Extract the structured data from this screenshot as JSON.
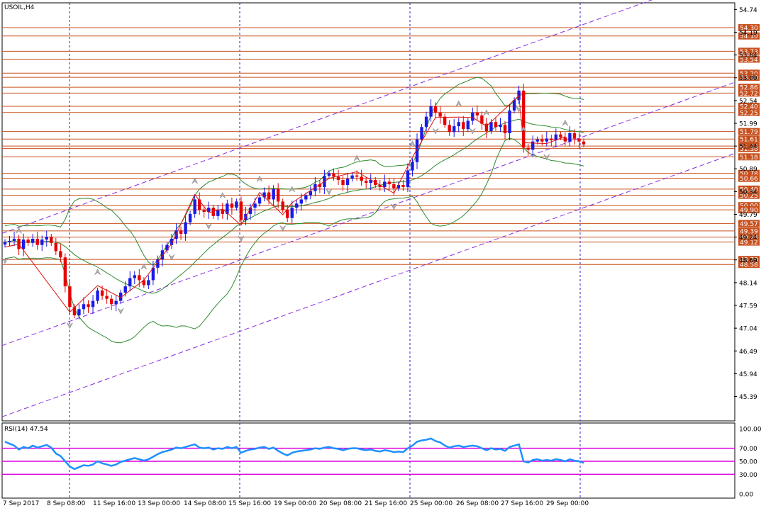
{
  "chart_data": [
    {
      "type": "candlestick",
      "title": "USOIL,H4",
      "price_range": [
        44.8,
        54.9
      ],
      "price_ticks": [
        "54.74",
        "54.19",
        "53.64",
        "53.09",
        "52.54",
        "51.99",
        "51.44",
        "50.89",
        "50.34",
        "49.79",
        "49.24",
        "48.69",
        "48.14",
        "47.59",
        "47.04",
        "46.49",
        "45.94",
        "45.39"
      ],
      "level_lines": [
        {
          "value": 54.3,
          "label": "54.30"
        },
        {
          "value": 54.1,
          "label": "54.10"
        },
        {
          "value": 53.73,
          "label": "53.73"
        },
        {
          "value": 53.54,
          "label": "53.54"
        },
        {
          "value": 53.2,
          "label": "53.20"
        },
        {
          "value": 53.1,
          "label": "53.10"
        },
        {
          "value": 52.86,
          "label": "52.86"
        },
        {
          "value": 52.72,
          "label": "52.72"
        },
        {
          "value": 52.4,
          "label": "52.40"
        },
        {
          "value": 52.25,
          "label": "52.25"
        },
        {
          "value": 51.79,
          "label": "51.79"
        },
        {
          "value": 51.61,
          "label": "51.61"
        },
        {
          "value": 51.44,
          "label": "51.44"
        },
        {
          "value": 51.38,
          "label": "51.38"
        },
        {
          "value": 51.18,
          "label": "51.18"
        },
        {
          "value": 50.78,
          "label": "50.78"
        },
        {
          "value": 50.66,
          "label": "50.66"
        },
        {
          "value": 50.4,
          "label": "50.40"
        },
        {
          "value": 50.25,
          "label": "50.25"
        },
        {
          "value": 50.0,
          "label": "50.00"
        },
        {
          "value": 49.9,
          "label": "49.90"
        },
        {
          "value": 49.57,
          "label": "49.57"
        },
        {
          "value": 49.39,
          "label": "49.39"
        },
        {
          "value": 49.24,
          "label": "49.24"
        },
        {
          "value": 49.12,
          "label": "49.12"
        },
        {
          "value": 48.7,
          "label": "48.70"
        },
        {
          "value": 48.58,
          "label": "48.58"
        }
      ],
      "closes": [
        49.12,
        49.15,
        49.2,
        48.95,
        49.18,
        49.1,
        49.2,
        49.05,
        49.18,
        49.25,
        49.1,
        48.9,
        48.75,
        48.05,
        47.55,
        47.35,
        47.5,
        47.62,
        47.55,
        47.7,
        47.95,
        47.82,
        47.75,
        47.62,
        47.7,
        47.9,
        48.05,
        48.25,
        48.32,
        48.2,
        48.08,
        48.2,
        48.5,
        48.7,
        48.92,
        49.05,
        49.2,
        49.4,
        49.32,
        49.6,
        49.8,
        50.15,
        49.9,
        49.85,
        49.95,
        49.75,
        49.9,
        49.8,
        50.05,
        49.95,
        50.1,
        49.65,
        49.8,
        49.95,
        50.05,
        50.2,
        50.32,
        50.15,
        50.4,
        50.1,
        49.9,
        49.7,
        49.95,
        50.05,
        50.15,
        50.25,
        50.35,
        50.52,
        50.45,
        50.72,
        50.78,
        50.7,
        50.62,
        50.5,
        50.65,
        50.73,
        50.7,
        50.6,
        50.55,
        50.62,
        50.5,
        50.45,
        50.58,
        50.52,
        50.42,
        50.5,
        50.45,
        50.85,
        51.05,
        51.6,
        51.9,
        52.15,
        52.4,
        52.25,
        52.15,
        51.95,
        51.78,
        51.92,
        52.02,
        51.85,
        52.05,
        52.25,
        52.18,
        51.98,
        51.8,
        52.02,
        51.9,
        51.95,
        51.75,
        52.3,
        52.55,
        52.78,
        51.4,
        51.35,
        51.55,
        51.6,
        51.55,
        51.62,
        51.58,
        51.72,
        51.65,
        51.55,
        51.75,
        51.62,
        51.55,
        51.48
      ],
      "rsi": {
        "label": "RSI(14) 47.54",
        "range": [
          0,
          100
        ],
        "ticks": [
          "100.00",
          "70.00",
          "50.00",
          "30.00",
          "0.00"
        ],
        "levels": [
          70,
          50,
          30
        ],
        "values": [
          80,
          77,
          74,
          68,
          72,
          70,
          74,
          71,
          73,
          75,
          71,
          62,
          58,
          50,
          42,
          38,
          41,
          44,
          43,
          45,
          50,
          47,
          45,
          43,
          45,
          49,
          51,
          53,
          55,
          53,
          51,
          53,
          57,
          61,
          64,
          66,
          68,
          71,
          70,
          72,
          74,
          76,
          71,
          70,
          71,
          68,
          70,
          69,
          72,
          70,
          72,
          63,
          66,
          68,
          69,
          71,
          72,
          69,
          71,
          66,
          62,
          59,
          63,
          65,
          66,
          67,
          68,
          70,
          69,
          71,
          72,
          70,
          69,
          67,
          69,
          70,
          70,
          68,
          67,
          68,
          66,
          65,
          67,
          66,
          64,
          65,
          64,
          70,
          74,
          80,
          82,
          83,
          85,
          81,
          79,
          74,
          71,
          73,
          74,
          72,
          73,
          74,
          73,
          70,
          67,
          70,
          68,
          69,
          66,
          72,
          74,
          76,
          50,
          48,
          52,
          53,
          51,
          52,
          51,
          53,
          52,
          50,
          53,
          51,
          50,
          47.54
        ]
      },
      "time_labels": [
        "7 Sep 2017",
        "8 Sep 08:00",
        "11 Sep 16:00",
        "13 Sep 00:00",
        "14 Sep 08:00",
        "15 Sep 16:00",
        "19 Sep 00:00",
        "20 Sep 08:00",
        "21 Sep 16:00",
        "25 Sep 00:00",
        "26 Sep 08:00",
        "27 Sep 16:00",
        "29 Sep 00:00"
      ],
      "colors": {
        "up": "#1a1ae6",
        "down": "#e60000",
        "bands": "#2e8b2e",
        "zigzag": "#dd1111",
        "channel": "#8a2be2",
        "levels": "#c8501e",
        "rsi": "#1e90ff",
        "rsi_levels": "#dd00dd",
        "session": "#2222cc"
      }
    }
  ]
}
